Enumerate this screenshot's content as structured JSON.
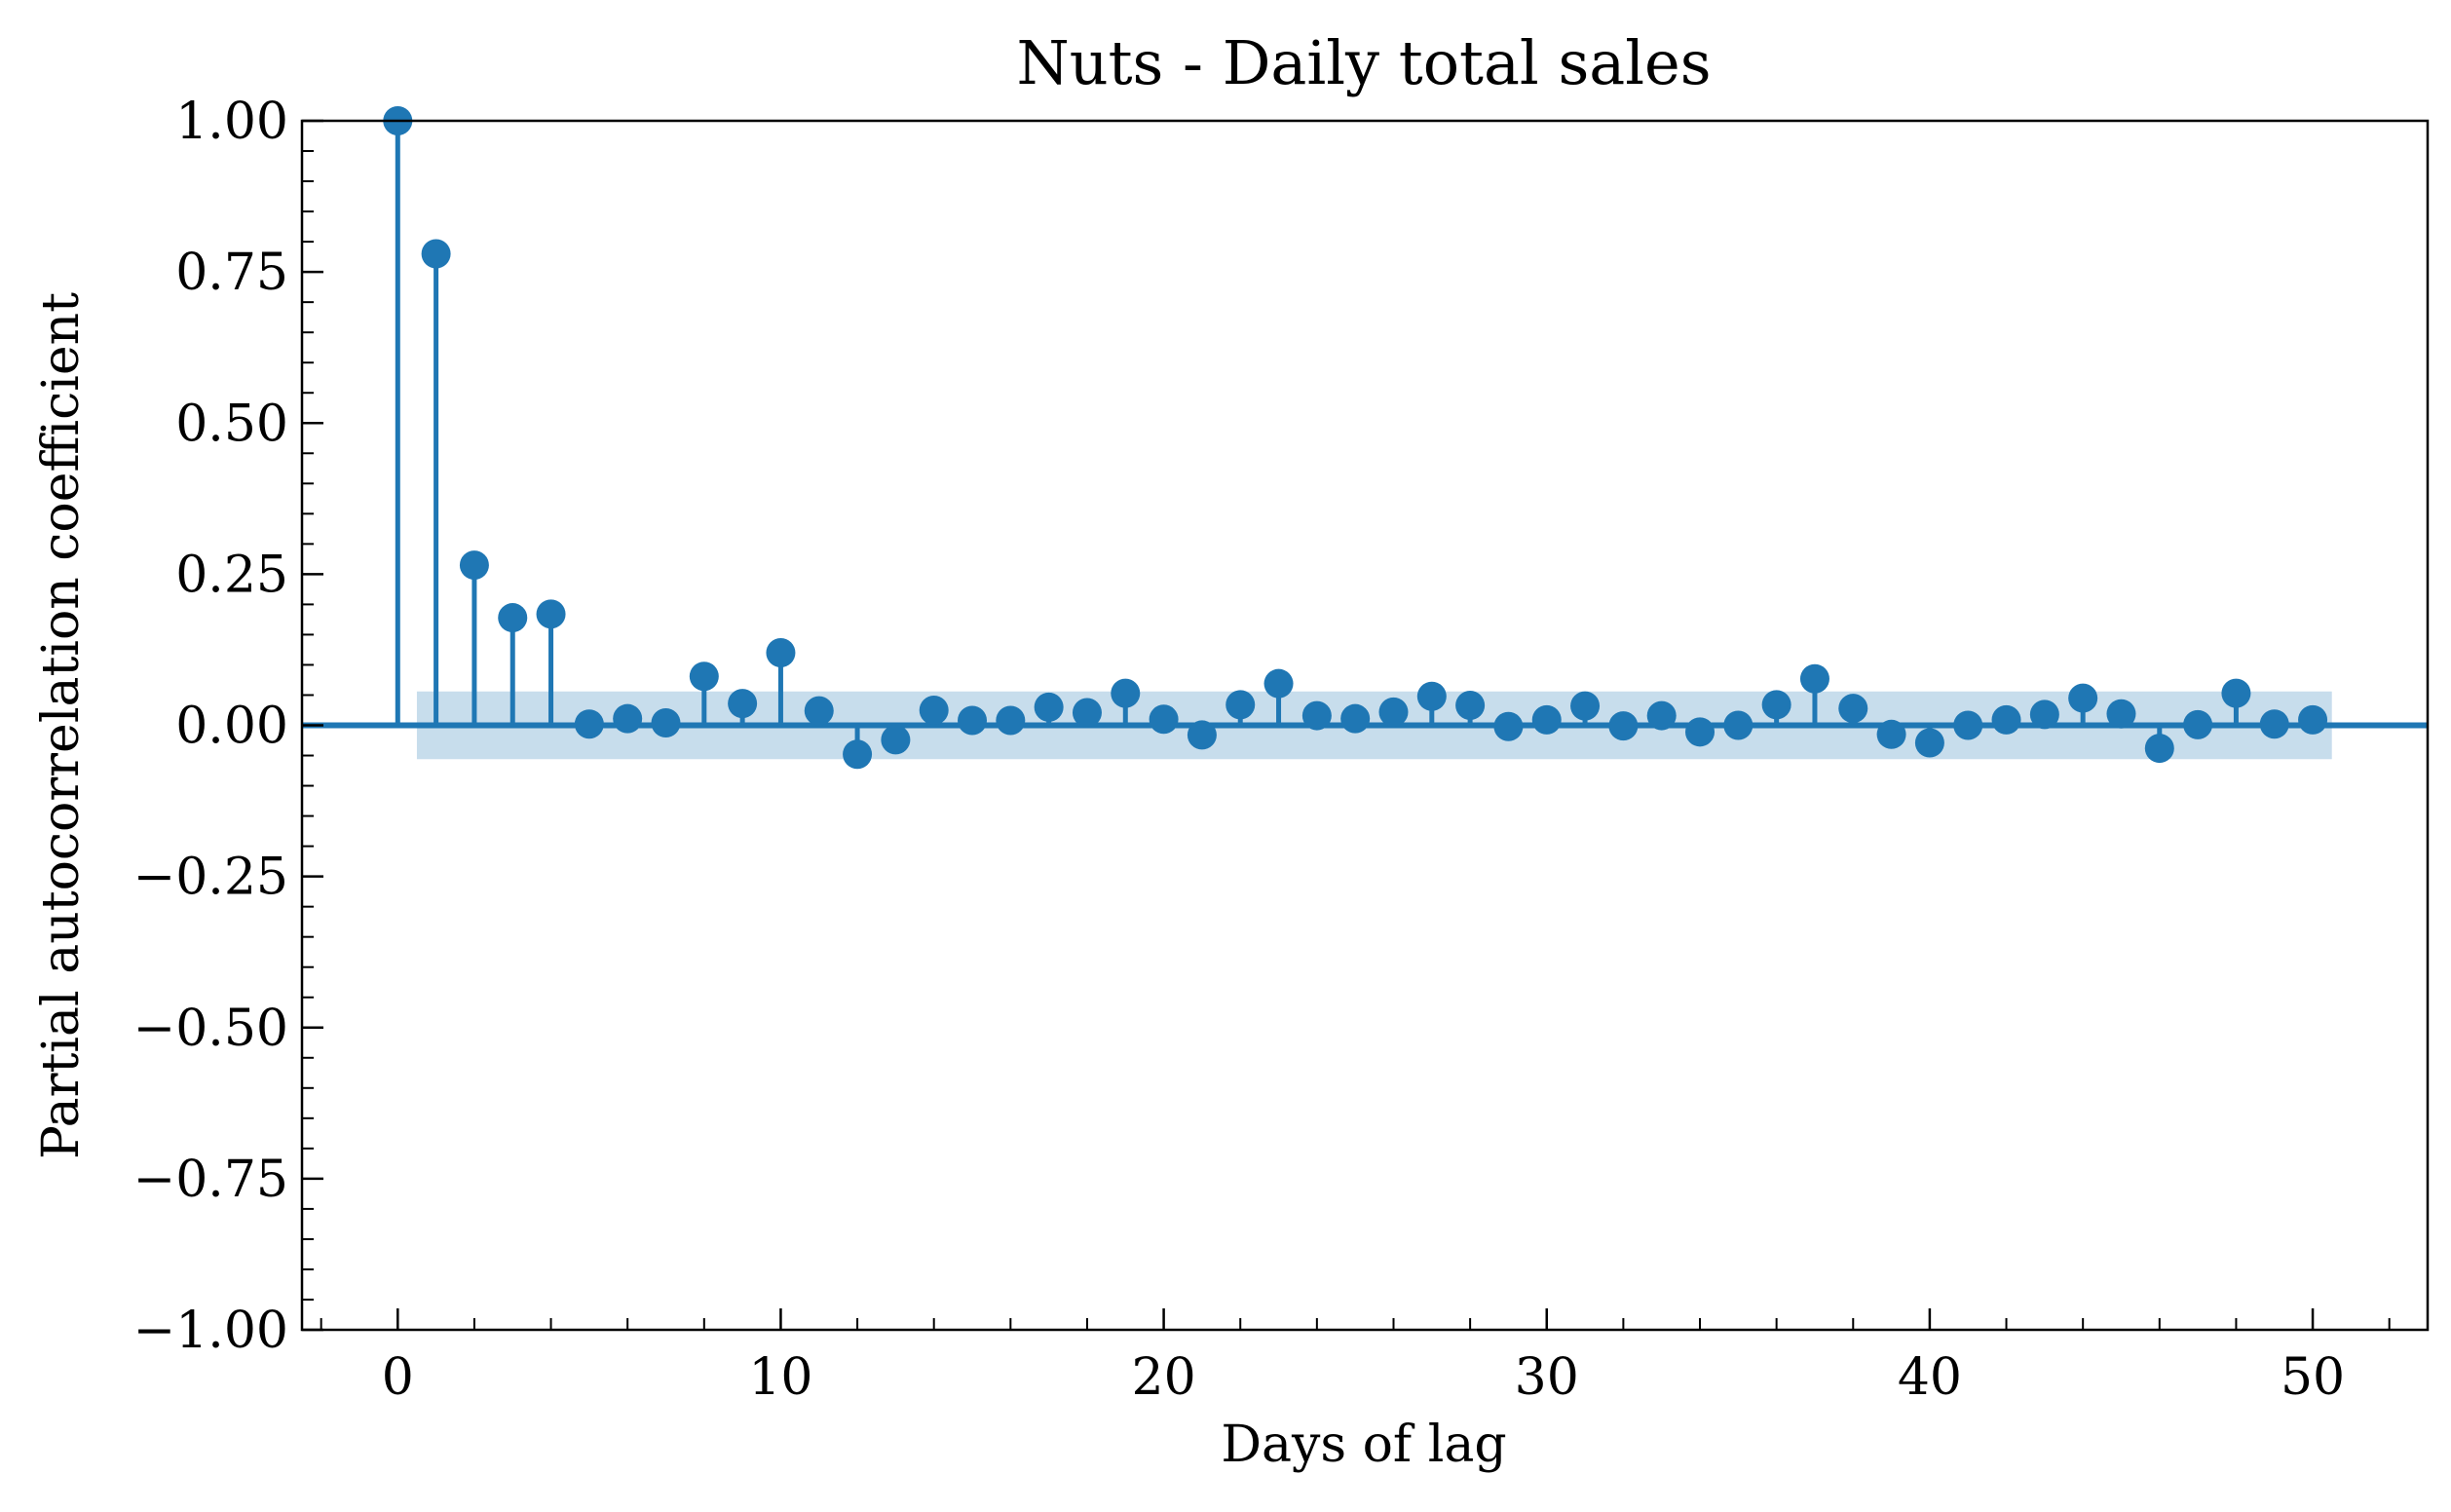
{
  "chart_data": {
    "type": "stem",
    "title": "Nuts - Daily total sales",
    "xlabel": "Days of lag",
    "ylabel": "Partial autocorrelation coefficient",
    "xlim": [
      -2.5,
      53
    ],
    "ylim": [
      -1.0,
      1.0
    ],
    "x_ticks": [
      0,
      10,
      20,
      30,
      40,
      50
    ],
    "x_tick_labels": [
      "0",
      "10",
      "20",
      "30",
      "40",
      "50"
    ],
    "y_ticks": [
      1.0,
      0.75,
      0.5,
      0.25,
      0.0,
      -0.25,
      -0.5,
      -0.75,
      -1.0
    ],
    "y_tick_labels": [
      "1.00",
      "0.75",
      "0.50",
      "0.25",
      "0.00",
      "−0.25",
      "−0.50",
      "−0.75",
      "−1.00"
    ],
    "grid": false,
    "color": "#1f77b4",
    "confidence_band": {
      "x_range": [
        0.5,
        50.5
      ],
      "lower": -0.056,
      "upper": 0.056,
      "color": "#1f77b4",
      "alpha": 0.25
    },
    "lags": [
      0,
      1,
      2,
      3,
      4,
      5,
      6,
      7,
      8,
      9,
      10,
      11,
      12,
      13,
      14,
      15,
      16,
      17,
      18,
      19,
      20,
      21,
      22,
      23,
      24,
      25,
      26,
      27,
      28,
      29,
      30,
      31,
      32,
      33,
      34,
      35,
      36,
      37,
      38,
      39,
      40,
      41,
      42,
      43,
      44,
      45,
      46,
      47,
      48,
      49,
      50
    ],
    "values": [
      1.0,
      0.78,
      0.265,
      0.178,
      0.184,
      0.002,
      0.011,
      0.004,
      0.081,
      0.036,
      0.12,
      0.024,
      -0.048,
      -0.024,
      0.025,
      0.008,
      0.008,
      0.03,
      0.021,
      0.053,
      0.01,
      -0.016,
      0.034,
      0.069,
      0.016,
      0.011,
      0.022,
      0.048,
      0.033,
      -0.002,
      0.009,
      0.032,
      -0.001,
      0.016,
      -0.011,
      0.0,
      0.034,
      0.077,
      0.028,
      -0.015,
      -0.029,
      0.0,
      0.009,
      0.018,
      0.045,
      0.019,
      -0.038,
      0.001,
      0.053,
      0.002,
      0.009
    ]
  }
}
